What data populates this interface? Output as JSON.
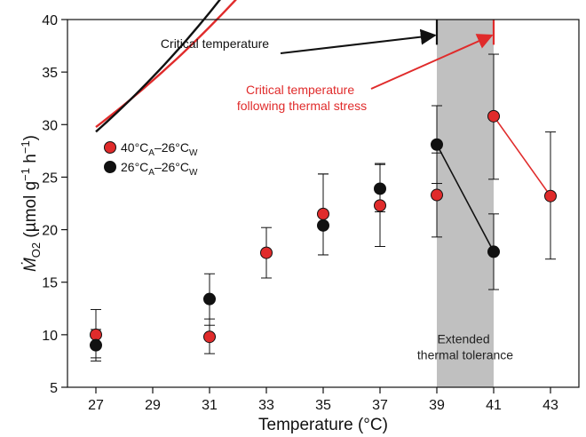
{
  "chart_data": {
    "type": "scatter",
    "xlabel": "Temperature (°C)",
    "ylabel": {
      "pre": "Ṁ",
      "sub": "O2",
      "mid": " (µmol g",
      "sup1": "−1",
      "mid2": " h",
      "sup2": "−1",
      "post": ")"
    },
    "xlim": [
      26,
      44
    ],
    "ylim": [
      5,
      40
    ],
    "xticks": [
      27,
      29,
      31,
      33,
      35,
      37,
      39,
      41,
      43
    ],
    "yticks": [
      5,
      10,
      15,
      20,
      25,
      30,
      35,
      40
    ],
    "shaded_region": {
      "x": [
        39,
        41
      ],
      "color": "#c0c0c0",
      "label_lines": [
        "Extended",
        "thermal tolerance"
      ]
    },
    "legend_placement": "left-center",
    "series": [
      {
        "name": {
          "a": "40°C",
          "a_sub": "A",
          "b": "–26°C",
          "b_sub": "W"
        },
        "color": "#e02b2b",
        "points": [
          {
            "x": 27,
            "y": 10.0,
            "err": [
              7.8,
              12.4
            ]
          },
          {
            "x": 31,
            "y": 9.8,
            "err": [
              8.2,
              11.5
            ]
          },
          {
            "x": 33,
            "y": 17.8,
            "err": [
              15.4,
              20.2
            ]
          },
          {
            "x": 35,
            "y": 21.5,
            "err": [
              17.6,
              25.3
            ]
          },
          {
            "x": 37,
            "y": 22.3,
            "err": [
              18.4,
              26.2
            ]
          },
          {
            "x": 39,
            "y": 23.3,
            "err": [
              19.3,
              27.3
            ]
          },
          {
            "x": 41,
            "y": 30.8,
            "err": [
              24.8,
              36.7
            ]
          },
          {
            "x": 43,
            "y": 23.2,
            "err": [
              17.2,
              29.3
            ]
          }
        ],
        "fit": {
          "a": 4.57,
          "b": 0.0694,
          "x_solid": [
            27,
            41
          ],
          "x_dotted": [
            41,
            43
          ]
        }
      },
      {
        "name": {
          "a": "26°C",
          "a_sub": "A",
          "b": "–26°C",
          "b_sub": "W"
        },
        "color": "#111111",
        "points": [
          {
            "x": 27,
            "y": 9.0,
            "err": [
              7.5,
              10.5
            ]
          },
          {
            "x": 31,
            "y": 13.4,
            "err": [
              10.9,
              15.8
            ]
          },
          {
            "x": 35,
            "y": 20.4,
            "err": [
              17.6,
              25.3
            ]
          },
          {
            "x": 37,
            "y": 23.9,
            "err": [
              21.7,
              26.3
            ]
          },
          {
            "x": 39,
            "y": 28.1,
            "err": [
              24.4,
              31.8
            ]
          },
          {
            "x": 41,
            "y": 17.9,
            "err": [
              14.3,
              21.5
            ]
          }
        ],
        "fit": {
          "a": 3.23,
          "b": 0.0817,
          "x_solid": [
            27,
            39
          ],
          "x_dotted": [
            39,
            43
          ]
        }
      }
    ],
    "annotations": [
      {
        "lines": [
          "Critical temperature"
        ],
        "color": "#111111",
        "arrow_to": {
          "x": 39,
          "y": 38.5
        },
        "cap_at_x": 39
      },
      {
        "lines": [
          "Critical temperature",
          "following thermal stress"
        ],
        "color": "#e02b2b",
        "arrow_to": {
          "x": 41,
          "y": 38.5
        },
        "cap_at_x": 41
      }
    ]
  }
}
